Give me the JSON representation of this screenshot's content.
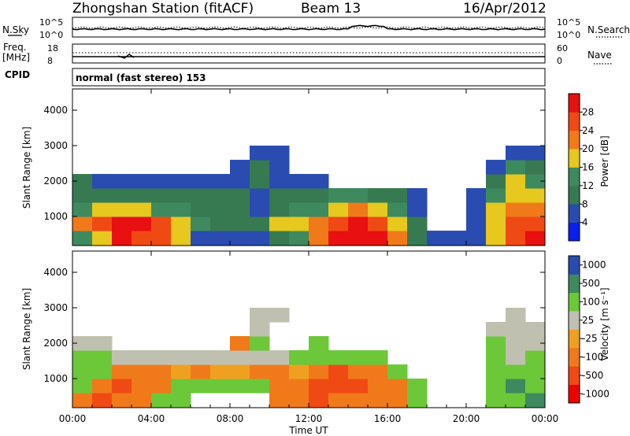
{
  "header": {
    "title": "Zhongshan Station (fitACF)",
    "beam": "Beam 13",
    "date": "16/Apr/2012"
  },
  "top_panels": {
    "nsky_label": "N.Sky",
    "nsearch_label": "N.Search",
    "nsky_ticks": [
      "10^5",
      "10^0"
    ],
    "nsearch_ticks": [
      "10^5",
      "10^0"
    ],
    "freq_label_1": "Freq.",
    "freq_label_2": "[MHz]",
    "freq_ticks": [
      "18",
      "8"
    ],
    "nave_label": "Nave",
    "nave_ticks": [
      "60",
      "0"
    ],
    "cpid_label": "CPID",
    "cpid_text": "normal (fast stereo) 153"
  },
  "colors": {
    "power_scale": [
      "#0a1ef0",
      "#2a4bb0",
      "#377a52",
      "#3e8a5e",
      "#e6c81e",
      "#f07a1a",
      "#f04a14",
      "#e81010"
    ],
    "velocity_scale": [
      "#f00000",
      "#f04a14",
      "#f07a1a",
      "#f0a020",
      "#c0c0b0",
      "#6cc838",
      "#3e8a5e",
      "#2a4bb0"
    ]
  },
  "chart_data": [
    {
      "type": "heatmap",
      "name": "power",
      "ylabel": "Slant Range [km]",
      "yticks": [
        1000,
        2000,
        3000,
        4000
      ],
      "ylim": [
        180,
        4600
      ],
      "xlim": [
        0,
        24
      ],
      "colorbar": {
        "label": "Power [dB]",
        "ticks": [
          "4",
          "8",
          "12",
          "16",
          "20",
          "24",
          "28"
        ],
        "range": [
          0,
          32
        ]
      },
      "x": [
        0.5,
        1.5,
        2.5,
        3.5,
        4.5,
        5.5,
        6.5,
        7.5,
        8.5,
        9.5,
        10.5,
        11.5,
        12.5,
        13.5,
        14.5,
        15.5,
        16.5,
        17.5,
        18.5,
        19.5,
        20.5,
        21.5,
        22.5,
        23.5
      ],
      "y": [
        400,
        800,
        1200,
        1600,
        2000,
        2400,
        2800,
        3200
      ],
      "z": [
        [
          12,
          18,
          28,
          26,
          24,
          16,
          6,
          4,
          4,
          6,
          10,
          14,
          22,
          28,
          30,
          28,
          20,
          8,
          6,
          4,
          6,
          18,
          24,
          28
        ],
        [
          20,
          26,
          28,
          28,
          24,
          18,
          12,
          10,
          8,
          10,
          16,
          18,
          20,
          26,
          28,
          26,
          18,
          10,
          0,
          0,
          4,
          18,
          24,
          26
        ],
        [
          12,
          16,
          18,
          16,
          14,
          12,
          8,
          8,
          8,
          6,
          10,
          12,
          14,
          18,
          20,
          18,
          12,
          6,
          0,
          0,
          4,
          16,
          20,
          22
        ],
        [
          10,
          8,
          10,
          8,
          8,
          8,
          8,
          8,
          8,
          6,
          8,
          8,
          10,
          12,
          12,
          10,
          8,
          4,
          0,
          0,
          4,
          12,
          16,
          16
        ],
        [
          8,
          6,
          4,
          4,
          4,
          4,
          4,
          4,
          6,
          8,
          4,
          4,
          6,
          0,
          0,
          0,
          0,
          0,
          0,
          0,
          0,
          8,
          16,
          14
        ],
        [
          0,
          0,
          0,
          0,
          0,
          0,
          0,
          0,
          4,
          8,
          4,
          0,
          0,
          0,
          0,
          0,
          0,
          0,
          0,
          0,
          0,
          4,
          12,
          10
        ],
        [
          0,
          0,
          0,
          0,
          0,
          0,
          0,
          0,
          0,
          4,
          4,
          0,
          0,
          0,
          0,
          0,
          0,
          0,
          0,
          0,
          0,
          0,
          6,
          4
        ],
        [
          0,
          0,
          0,
          0,
          0,
          0,
          0,
          0,
          0,
          0,
          0,
          0,
          0,
          0,
          0,
          0,
          0,
          0,
          0,
          0,
          0,
          0,
          0,
          0
        ]
      ]
    },
    {
      "type": "heatmap",
      "name": "velocity",
      "ylabel": "Slant Range [km]",
      "yticks": [
        1000,
        2000,
        3000,
        4000
      ],
      "ylim": [
        180,
        4600
      ],
      "xlim": [
        0,
        24
      ],
      "xlabel": "Time UT",
      "xticks": [
        "00:00",
        "04:00",
        "08:00",
        "12:00",
        "16:00",
        "20:00",
        "00:00"
      ],
      "colorbar": {
        "label": "Velocity [m s⁻¹]",
        "ticks": [
          "-1000",
          "-500",
          "-100",
          "-25",
          "25",
          "100",
          "500",
          "1000"
        ]
      },
      "x": [
        0.5,
        1.5,
        2.5,
        3.5,
        4.5,
        5.5,
        6.5,
        7.5,
        8.5,
        9.5,
        10.5,
        11.5,
        12.5,
        13.5,
        14.5,
        15.5,
        16.5,
        17.5,
        18.5,
        19.5,
        20.5,
        21.5,
        22.5,
        23.5
      ],
      "y": [
        400,
        800,
        1200,
        1600,
        2000,
        2400,
        2800,
        3200
      ],
      "z": [
        [
          -100,
          -500,
          -100,
          -100,
          100,
          100,
          0,
          0,
          0,
          0,
          -100,
          -100,
          -500,
          -100,
          -100,
          -100,
          -100,
          100,
          0,
          0,
          0,
          100,
          100,
          500
        ],
        [
          100,
          -100,
          -500,
          -100,
          -100,
          100,
          100,
          100,
          100,
          100,
          -100,
          -100,
          -500,
          -500,
          -500,
          -100,
          -100,
          100,
          0,
          0,
          0,
          100,
          500,
          100
        ],
        [
          100,
          100,
          -100,
          -100,
          -100,
          -25,
          -100,
          -25,
          -25,
          -100,
          -100,
          -25,
          -100,
          -500,
          -100,
          -100,
          100,
          0,
          0,
          0,
          0,
          100,
          100,
          100
        ],
        [
          100,
          100,
          25,
          25,
          25,
          25,
          25,
          25,
          25,
          25,
          25,
          100,
          100,
          100,
          100,
          100,
          0,
          0,
          0,
          0,
          0,
          100,
          25,
          100
        ],
        [
          25,
          25,
          0,
          0,
          0,
          0,
          0,
          0,
          -100,
          100,
          0,
          0,
          100,
          0,
          0,
          0,
          0,
          0,
          0,
          0,
          0,
          100,
          25,
          25
        ],
        [
          0,
          0,
          0,
          0,
          0,
          0,
          0,
          0,
          0,
          25,
          0,
          0,
          0,
          0,
          0,
          0,
          0,
          0,
          0,
          0,
          0,
          25,
          25,
          25
        ],
        [
          0,
          0,
          0,
          0,
          0,
          0,
          0,
          0,
          0,
          25,
          25,
          0,
          0,
          0,
          0,
          0,
          0,
          0,
          0,
          0,
          0,
          0,
          25,
          0
        ],
        [
          0,
          0,
          0,
          0,
          0,
          0,
          0,
          0,
          0,
          0,
          0,
          0,
          0,
          0,
          0,
          0,
          0,
          0,
          0,
          0,
          0,
          0,
          0,
          0
        ]
      ]
    }
  ]
}
